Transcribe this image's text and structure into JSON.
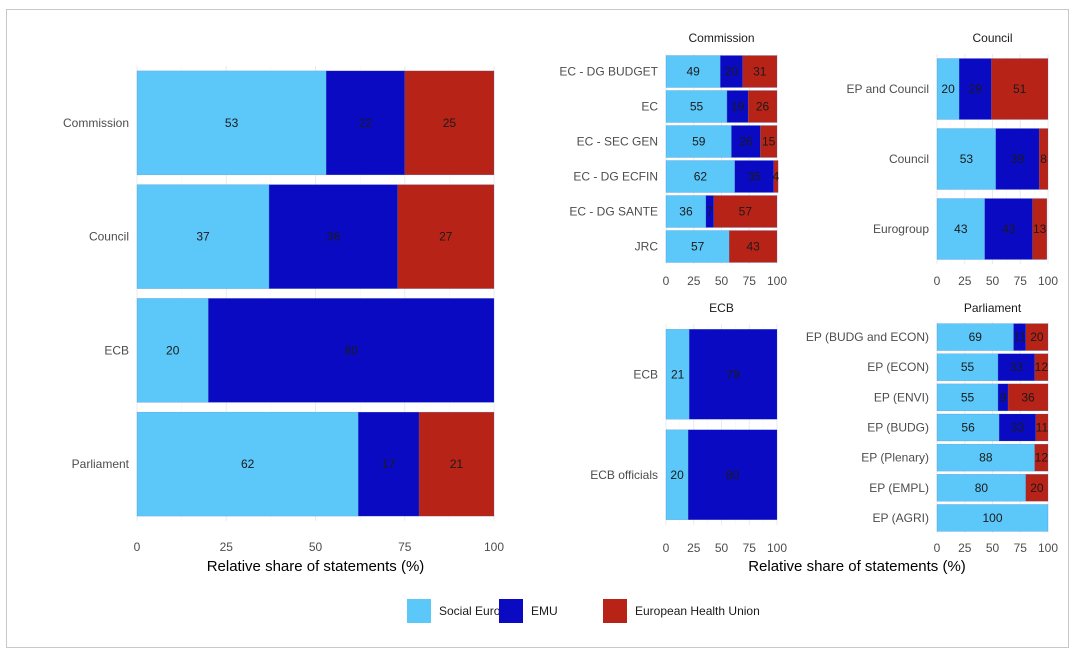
{
  "colors": {
    "Social Europe": "#5BC8F9",
    "EMU": "#0A0AC2",
    "European Health Union": "#B82318",
    "grid": "#ebebeb"
  },
  "chart_data": [
    {
      "type": "bar",
      "orientation": "horizontal-stacked",
      "title": "",
      "xlabel": "Relative share of statements (%)",
      "xlim": [
        0,
        100
      ],
      "xticks": [
        "0",
        "25",
        "50",
        "75",
        "100"
      ],
      "categories": [
        "Commission",
        "Council",
        "ECB",
        "Parliament"
      ],
      "series": [
        {
          "name": "Social Europe",
          "values": [
            53,
            37,
            20,
            62
          ]
        },
        {
          "name": "EMU",
          "values": [
            22,
            36,
            80,
            17
          ]
        },
        {
          "name": "European Health Union",
          "values": [
            25,
            27,
            0,
            21
          ]
        }
      ]
    },
    {
      "type": "bar",
      "orientation": "horizontal-stacked",
      "title": "Commission",
      "xlim": [
        0,
        100
      ],
      "xticks": [
        "0",
        "25",
        "50",
        "75",
        "100"
      ],
      "categories": [
        "EC - DG BUDGET",
        "EC",
        "EC - SEC GEN",
        "EC - DG ECFIN",
        "EC - DG SANTE",
        "JRC"
      ],
      "series": [
        {
          "name": "Social Europe",
          "values": [
            49,
            55,
            59,
            62,
            36,
            57
          ]
        },
        {
          "name": "EMU",
          "values": [
            20,
            19,
            26,
            35,
            7,
            0
          ]
        },
        {
          "name": "European Health Union",
          "values": [
            31,
            26,
            15,
            4,
            57,
            43
          ]
        }
      ]
    },
    {
      "type": "bar",
      "orientation": "horizontal-stacked",
      "title": "Council",
      "xlim": [
        0,
        100
      ],
      "xticks": [
        "0",
        "25",
        "50",
        "75",
        "100"
      ],
      "categories": [
        "EP and Council",
        "Council",
        "Eurogroup"
      ],
      "series": [
        {
          "name": "Social Europe",
          "values": [
            20,
            53,
            43
          ]
        },
        {
          "name": "EMU",
          "values": [
            29,
            39,
            43
          ]
        },
        {
          "name": "European Health Union",
          "values": [
            51,
            8,
            13
          ]
        }
      ]
    },
    {
      "type": "bar",
      "orientation": "horizontal-stacked",
      "title": "ECB",
      "xlim": [
        0,
        100
      ],
      "xticks": [
        "0",
        "25",
        "50",
        "75",
        "100"
      ],
      "categories": [
        "ECB",
        "ECB officials"
      ],
      "series": [
        {
          "name": "Social Europe",
          "values": [
            21,
            20
          ]
        },
        {
          "name": "EMU",
          "values": [
            79,
            80
          ]
        },
        {
          "name": "European Health Union",
          "values": [
            0,
            0
          ]
        }
      ]
    },
    {
      "type": "bar",
      "orientation": "horizontal-stacked",
      "title": "Parliament",
      "xlabel": "Relative share of statements (%)",
      "xlim": [
        0,
        100
      ],
      "xticks": [
        "0",
        "25",
        "50",
        "75",
        "100"
      ],
      "categories": [
        "EP (BUDG and ECON)",
        "EP (ECON)",
        "EP (ENVI)",
        "EP (BUDG)",
        "EP (Plenary)",
        "EP (EMPL)",
        "EP (AGRI)"
      ],
      "series": [
        {
          "name": "Social Europe",
          "values": [
            69,
            55,
            55,
            56,
            88,
            80,
            100
          ]
        },
        {
          "name": "EMU",
          "values": [
            11,
            33,
            9,
            33,
            0,
            0,
            0
          ]
        },
        {
          "name": "European Health Union",
          "values": [
            20,
            12,
            36,
            11,
            12,
            20,
            0
          ]
        }
      ]
    }
  ],
  "legend": {
    "items": [
      "Social Europe",
      "EMU",
      "European Health Union"
    ]
  }
}
